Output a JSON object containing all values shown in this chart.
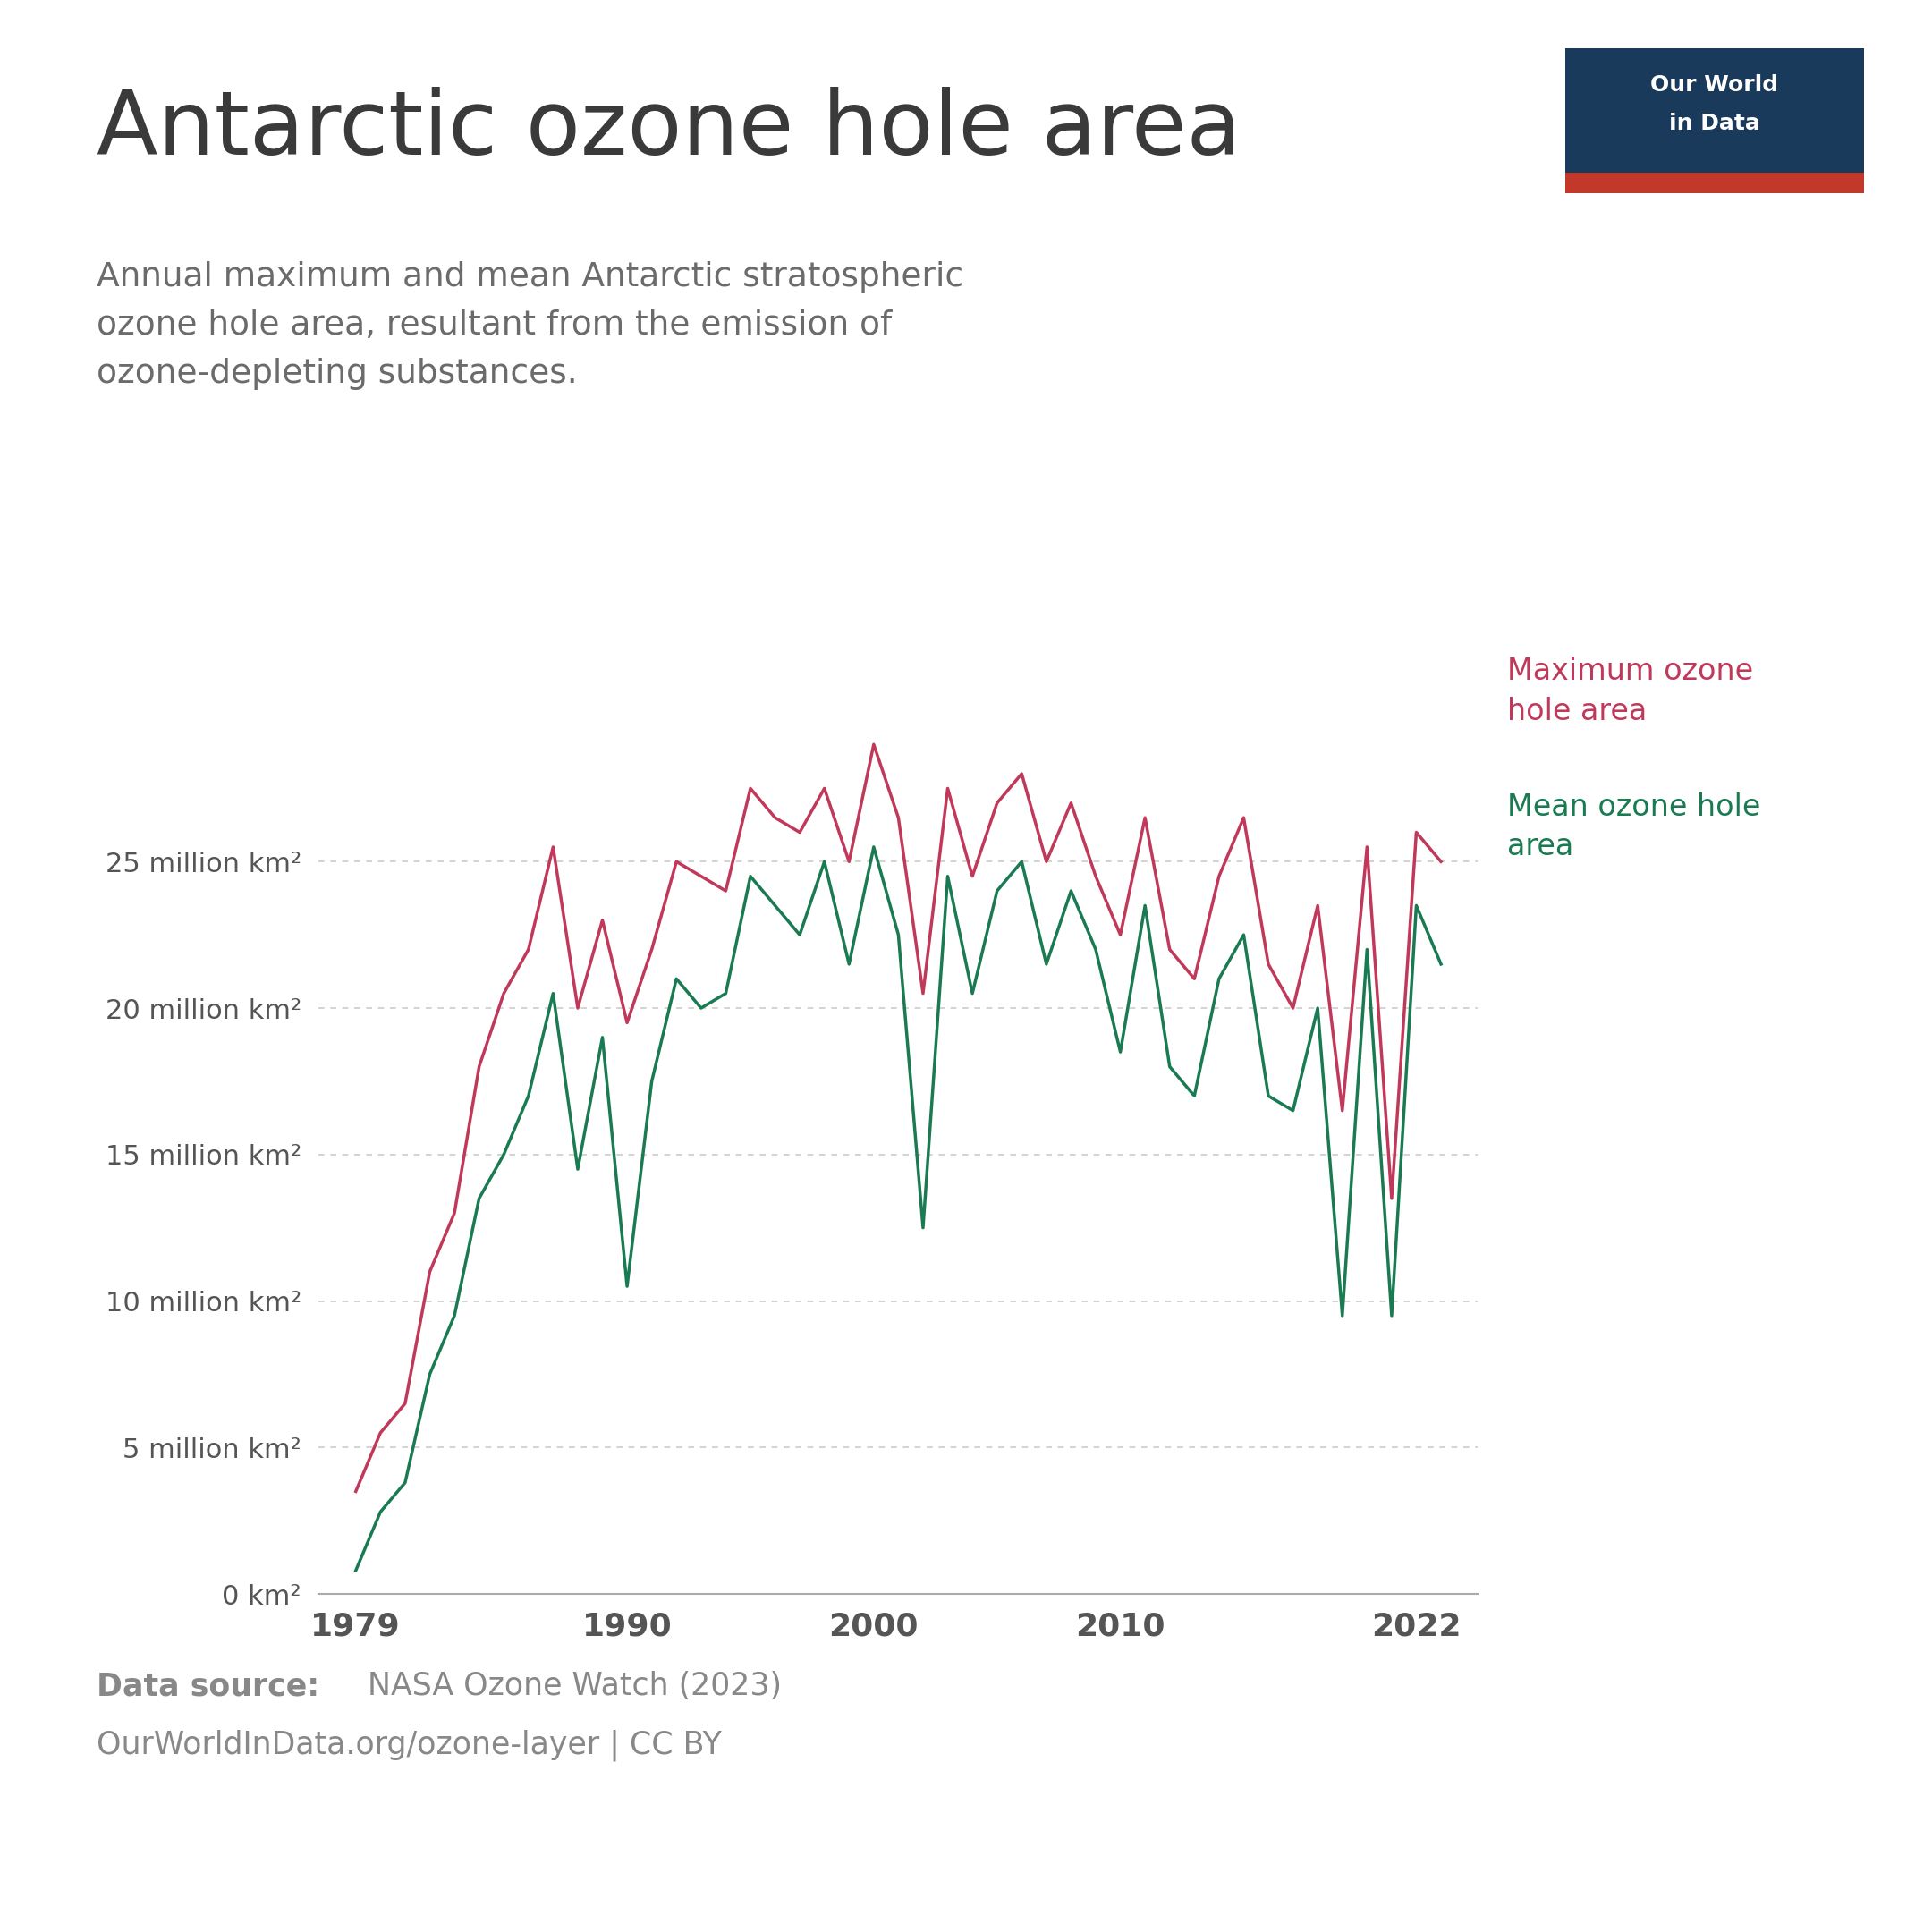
{
  "title": "Antarctic ozone hole area",
  "subtitle": "Annual maximum and mean Antarctic stratospheric\nozone hole area, resultant from the emission of\nozone-depleting substances.",
  "source_bold": "Data source:",
  "source_text": " NASA Ozone Watch (2023)",
  "source_url": "OurWorldInData.org/ozone-layer | CC BY",
  "max_label": "Maximum ozone\nhole area",
  "mean_label": "Mean ozone hole\narea",
  "max_color": "#c0395a",
  "mean_color": "#1a7a52",
  "background_color": "#ffffff",
  "title_color": "#3a3a3a",
  "subtitle_color": "#6b6b6b",
  "axis_color": "#aaaaaa",
  "grid_color": "#cccccc",
  "tick_label_color": "#555555",
  "source_color": "#888888",
  "logo_bg": "#1a3a5c",
  "logo_red": "#c0392b",
  "years_max": [
    1979,
    1980,
    1981,
    1982,
    1983,
    1984,
    1985,
    1986,
    1987,
    1988,
    1989,
    1990,
    1991,
    1992,
    1993,
    1994,
    1995,
    1996,
    1997,
    1998,
    1999,
    2000,
    2001,
    2002,
    2003,
    2004,
    2005,
    2006,
    2007,
    2008,
    2009,
    2010,
    2011,
    2012,
    2013,
    2014,
    2015,
    2016,
    2017,
    2018,
    2019,
    2020,
    2021,
    2022,
    2023
  ],
  "values_max": [
    3.5,
    5.5,
    6.5,
    11.0,
    13.0,
    18.0,
    20.5,
    22.0,
    25.5,
    20.0,
    23.0,
    19.5,
    22.0,
    25.0,
    24.5,
    24.0,
    27.5,
    26.5,
    26.0,
    27.5,
    25.0,
    29.0,
    26.5,
    20.5,
    27.5,
    24.5,
    27.0,
    28.0,
    25.0,
    27.0,
    24.5,
    22.5,
    26.5,
    22.0,
    21.0,
    24.5,
    26.5,
    21.5,
    20.0,
    23.5,
    16.5,
    25.5,
    13.5,
    26.0,
    25.0
  ],
  "years_mean": [
    1979,
    1980,
    1981,
    1982,
    1983,
    1984,
    1985,
    1986,
    1987,
    1988,
    1989,
    1990,
    1991,
    1992,
    1993,
    1994,
    1995,
    1996,
    1997,
    1998,
    1999,
    2000,
    2001,
    2002,
    2003,
    2004,
    2005,
    2006,
    2007,
    2008,
    2009,
    2010,
    2011,
    2012,
    2013,
    2014,
    2015,
    2016,
    2017,
    2018,
    2019,
    2020,
    2021,
    2022,
    2023
  ],
  "values_mean": [
    0.8,
    2.8,
    3.8,
    7.5,
    9.5,
    13.5,
    15.0,
    17.0,
    20.5,
    14.5,
    19.0,
    10.5,
    17.5,
    21.0,
    20.0,
    20.5,
    24.5,
    23.5,
    22.5,
    25.0,
    21.5,
    25.5,
    22.5,
    12.5,
    24.5,
    20.5,
    24.0,
    25.0,
    21.5,
    24.0,
    22.0,
    18.5,
    23.5,
    18.0,
    17.0,
    21.0,
    22.5,
    17.0,
    16.5,
    20.0,
    9.5,
    22.0,
    9.5,
    23.5,
    21.5
  ],
  "yticks": [
    0,
    5,
    10,
    15,
    20,
    25
  ],
  "ytick_labels": [
    "0 km²",
    "5 million km²",
    "10 million km²",
    "15 million km²",
    "20 million km²",
    "25 million km²"
  ],
  "xticks": [
    1979,
    1990,
    2000,
    2010,
    2022
  ],
  "xlim": [
    1977.5,
    2024.5
  ],
  "ylim": [
    0,
    31
  ]
}
